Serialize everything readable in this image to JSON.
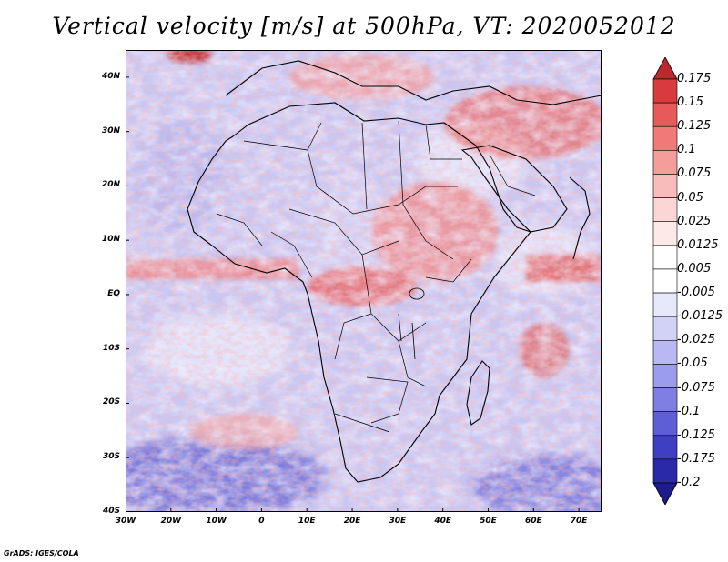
{
  "title": "Vertical velocity [m/s] at 500hPa, VT: 2020052012",
  "credit": "GrADS: IGES/COLA",
  "map": {
    "lon_range": [
      -30,
      75
    ],
    "lat_range": [
      -40,
      45
    ],
    "lat_ticks": [
      "40N",
      "30N",
      "20N",
      "10N",
      "EQ",
      "10S",
      "20S",
      "30S",
      "40S"
    ],
    "lat_values": [
      40,
      30,
      20,
      10,
      0,
      -10,
      -20,
      -30,
      -40
    ],
    "lon_ticks": [
      "30W",
      "20W",
      "10W",
      "0",
      "10E",
      "20E",
      "30E",
      "40E",
      "50E",
      "60E",
      "70E"
    ],
    "lon_values": [
      -30,
      -20,
      -10,
      0,
      10,
      20,
      30,
      40,
      50,
      60,
      70
    ]
  },
  "colorbar": {
    "labels": [
      "0.175",
      "0.15",
      "0.125",
      "0.1",
      "0.075",
      "0.05",
      "0.025",
      "0.0125",
      "0.005",
      "-0.005",
      "-0.0125",
      "-0.025",
      "-0.05",
      "-0.075",
      "-0.1",
      "-0.125",
      "-0.175",
      "-0.2"
    ],
    "colors": [
      "#c0272d",
      "#d83a3e",
      "#e85a5a",
      "#f07a78",
      "#f59d9b",
      "#f8bcba",
      "#fbd6d4",
      "#fde9e8",
      "#ffffff",
      "#ffffff",
      "#e8e8fb",
      "#d2d2f7",
      "#b8b8f2",
      "#9c9cec",
      "#7f7fe3",
      "#5e5ed6",
      "#3f3fc4",
      "#2a2aa8",
      "#1c1c8c"
    ]
  }
}
